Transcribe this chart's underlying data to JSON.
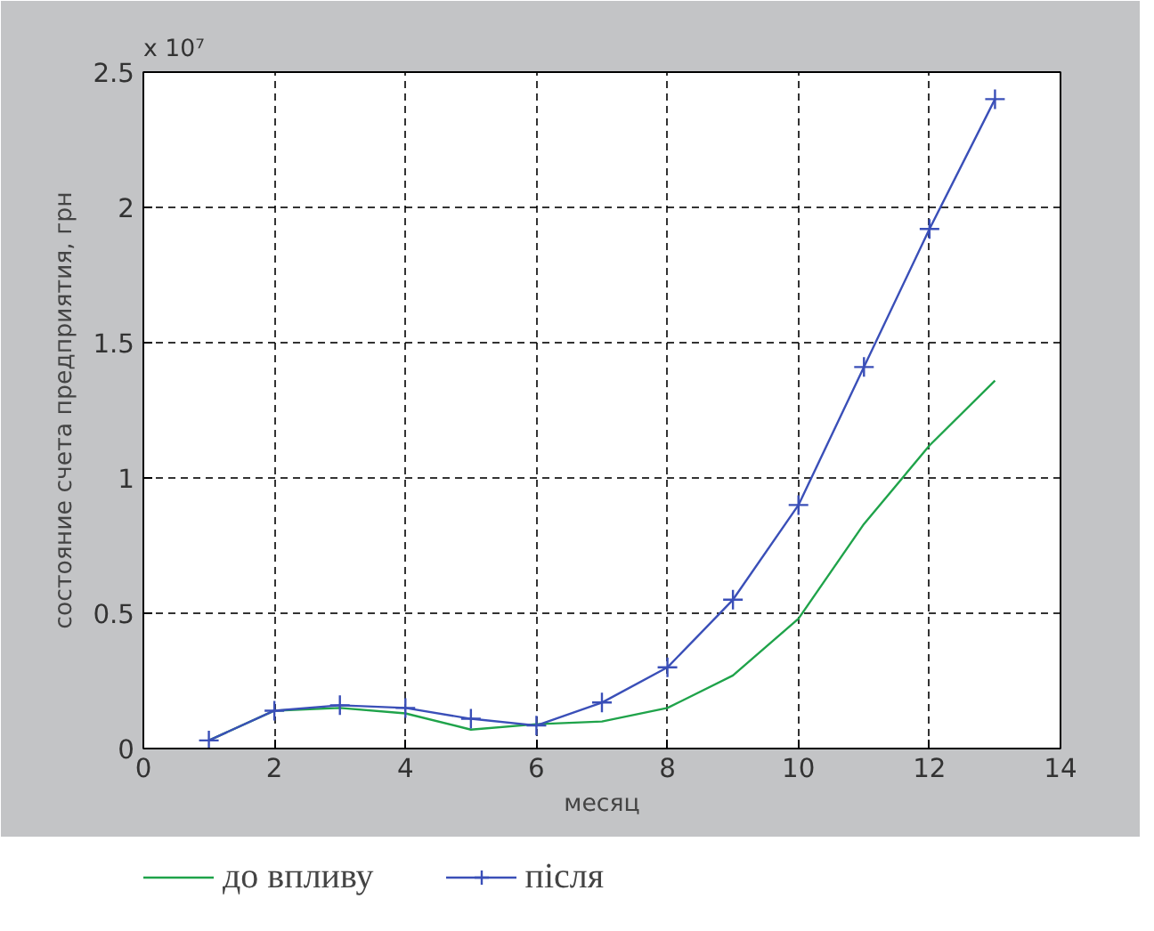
{
  "chart_data": {
    "type": "line",
    "xlabel": "месяц",
    "ylabel": "состояние счета предприятия, грн",
    "annotations": [
      "x 10⁷"
    ],
    "x": [
      1,
      2,
      3,
      4,
      5,
      6,
      7,
      8,
      9,
      10,
      11,
      12,
      13
    ],
    "series": [
      {
        "name": "до впливу",
        "color": "#1fa34a",
        "marker": "none",
        "values": [
          0.03,
          0.14,
          0.15,
          0.13,
          0.07,
          0.09,
          0.1,
          0.15,
          0.27,
          0.48,
          0.83,
          1.12,
          1.36
        ]
      },
      {
        "name": "після",
        "color": "#3a4fb8",
        "marker": "cross",
        "values": [
          0.03,
          0.14,
          0.16,
          0.15,
          0.11,
          0.085,
          0.17,
          0.3,
          0.55,
          0.9,
          1.41,
          1.92,
          2.4
        ]
      }
    ],
    "xlim": [
      0,
      14
    ],
    "xticks": [
      0,
      2,
      4,
      6,
      8,
      10,
      12,
      14
    ],
    "ylim": [
      0,
      2.5
    ],
    "yticks": [
      0,
      0.5,
      1,
      1.5,
      2,
      2.5
    ],
    "grid": true,
    "legend": "bottom",
    "line_style": "solid"
  }
}
